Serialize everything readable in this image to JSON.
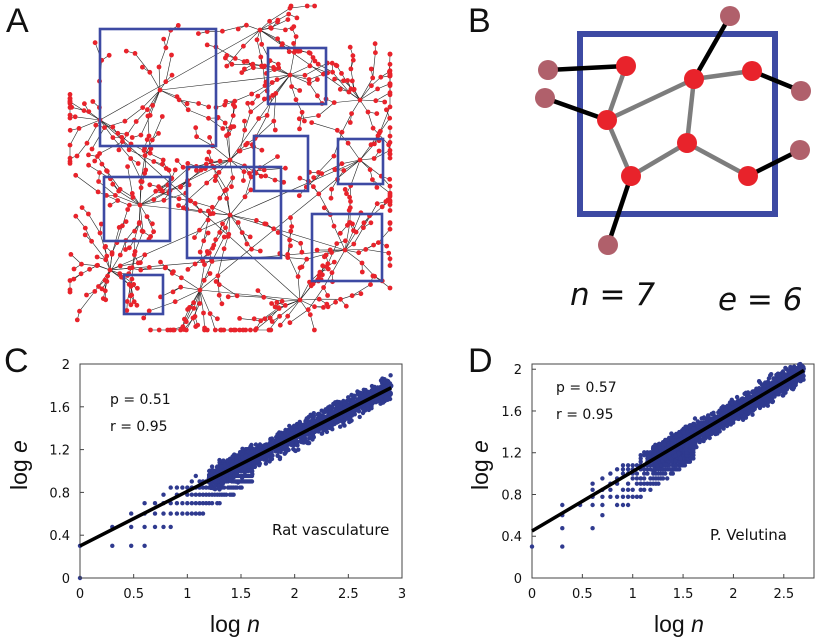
{
  "panels": {
    "A": {
      "label": "A"
    },
    "B": {
      "label": "B",
      "n_text": "n = 7",
      "e_text": "e = 6"
    },
    "C": {
      "label": "C"
    },
    "D": {
      "label": "D"
    }
  },
  "colors": {
    "node": "#e8232b",
    "box": "#3d4aa3",
    "outer_node": "#b0606b",
    "inner_edge": "#7d7d7d",
    "scatter": "#2f3a8f",
    "fit_line": "#000000"
  },
  "chart_data": [
    {
      "type": "scatter",
      "panel": "C",
      "xlabel_prefix": "log ",
      "xlabel_var": "n",
      "ylabel_prefix": "log ",
      "ylabel_var": "e",
      "annotation": "Rat vasculature",
      "stats": {
        "p": "p = 0.51",
        "r": "r =  0.95"
      },
      "xlim": [
        0,
        3
      ],
      "ylim": [
        0,
        2
      ],
      "xticks": [
        "0",
        "0.5",
        "1",
        "1.5",
        "2",
        "2.5",
        "3"
      ],
      "yticks": [
        "0",
        "0.4",
        "0.8",
        "1.2",
        "1.6",
        "2"
      ],
      "xticks_v": [
        0,
        0.5,
        1,
        1.5,
        2,
        2.5,
        3
      ],
      "yticks_v": [
        0,
        0.4,
        0.8,
        1.2,
        1.6,
        2
      ],
      "fit_line": {
        "slope": 0.51,
        "intercept": 0.3
      },
      "spread": 0.07,
      "x_range": [
        0.3,
        2.9
      ]
    },
    {
      "type": "scatter",
      "panel": "D",
      "xlabel_prefix": "log ",
      "xlabel_var": "n",
      "ylabel_prefix": "log ",
      "ylabel_var": "e",
      "annotation": "P. Velutina",
      "stats": {
        "p": "p = 0.57",
        "r": "r =  0.95"
      },
      "xlim": [
        0,
        2.8
      ],
      "ylim": [
        0,
        2.05
      ],
      "xticks": [
        "0",
        "0.5",
        "1",
        "1.5",
        "2",
        "2.5"
      ],
      "yticks": [
        "0",
        "0.4",
        "0.8",
        "1.2",
        "1.6",
        "2"
      ],
      "xticks_v": [
        0,
        0.5,
        1,
        1.5,
        2,
        2.5
      ],
      "yticks_v": [
        0,
        0.4,
        0.8,
        1.2,
        1.6,
        2
      ],
      "fit_line": {
        "slope": 0.57,
        "intercept": 0.45
      },
      "spread": 0.07,
      "x_range": [
        0.3,
        2.7
      ]
    }
  ]
}
